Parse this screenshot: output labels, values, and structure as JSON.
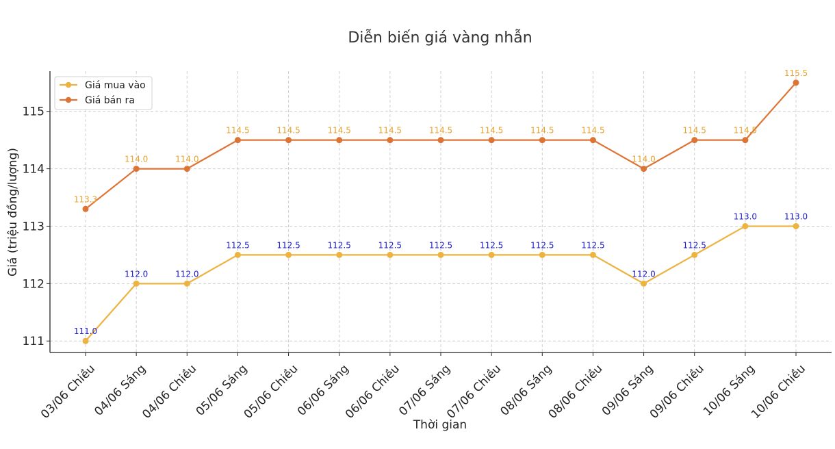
{
  "chart_data": {
    "type": "line",
    "title": "Diễn biến giá vàng nhẫn",
    "xlabel": "Thời gian",
    "ylabel": "Giá (triệu đồng/lượng)",
    "categories": [
      "03/06 Chiều",
      "04/06 Sáng",
      "04/06 Chiều",
      "05/06 Sáng",
      "05/06 Chiều",
      "06/06 Sáng",
      "06/06 Chiều",
      "07/06 Sáng",
      "07/06 Chiều",
      "08/06 Sáng",
      "08/06 Chiều",
      "09/06 Sáng",
      "09/06 Chiều",
      "10/06 Sáng",
      "10/06 Chiều"
    ],
    "ylim": [
      110.8,
      115.7
    ],
    "yticks": [
      111,
      112,
      113,
      114,
      115
    ],
    "grid": true,
    "legend": "top-left",
    "series": [
      {
        "name": "Giá mua vào",
        "color": "#EDB341",
        "label_color": "#1a1ad0",
        "values": [
          111.0,
          112.0,
          112.0,
          112.5,
          112.5,
          112.5,
          112.5,
          112.5,
          112.5,
          112.5,
          112.5,
          112.0,
          112.5,
          113.0,
          113.0
        ],
        "labels": [
          "111.0",
          "112.0",
          "112.0",
          "112.5",
          "112.5",
          "112.5",
          "112.5",
          "112.5",
          "112.5",
          "112.5",
          "112.5",
          "112.0",
          "112.5",
          "113.0",
          "113.0"
        ]
      },
      {
        "name": "Giá bán ra",
        "color": "#DD7436",
        "label_color": "#E8A22C",
        "values": [
          113.3,
          114.0,
          114.0,
          114.5,
          114.5,
          114.5,
          114.5,
          114.5,
          114.5,
          114.5,
          114.5,
          114.0,
          114.5,
          114.5,
          115.5
        ],
        "labels": [
          "113.3",
          "114.0",
          "114.0",
          "114.5",
          "114.5",
          "114.5",
          "114.5",
          "114.5",
          "114.5",
          "114.5",
          "114.5",
          "114.0",
          "114.5",
          "114.5",
          "115.5"
        ]
      }
    ]
  }
}
